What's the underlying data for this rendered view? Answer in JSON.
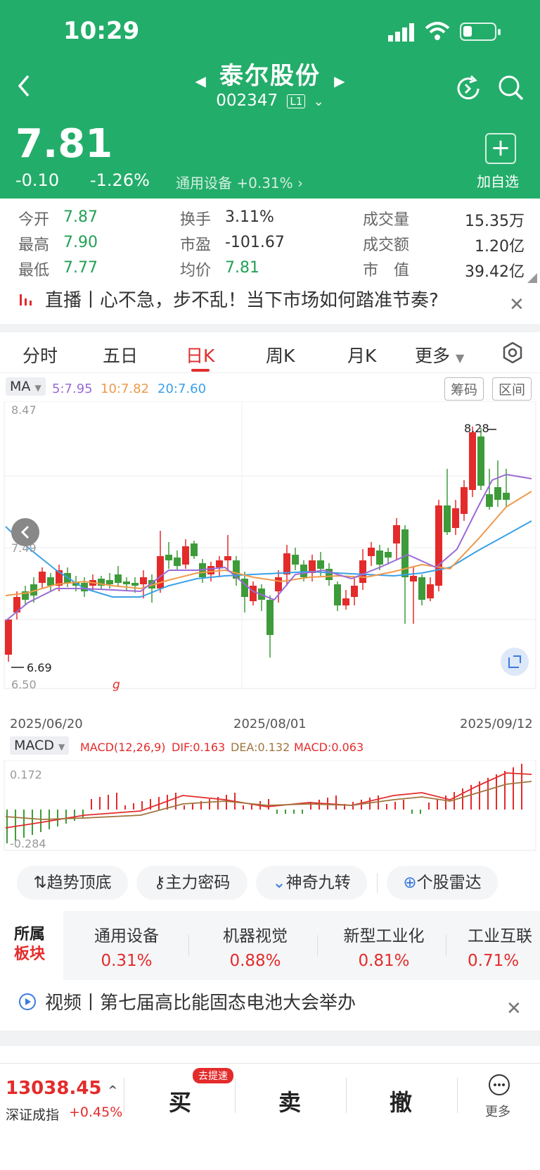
{
  "status_bar": {
    "time": "10:29"
  },
  "header": {
    "stock_name": "泰尔股份",
    "stock_code": "002347",
    "level_badge": "L1",
    "price": "7.81",
    "change": "-0.10",
    "change_pct": "-1.26%",
    "sector": "通用设备 +0.31%",
    "add_watch_label": "加自选"
  },
  "stats": [
    {
      "label": "今开",
      "value": "7.87"
    },
    {
      "label": "最高",
      "value": "7.90"
    },
    {
      "label": "最低",
      "value": "7.77"
    },
    {
      "label": "换手",
      "value": "3.11%"
    },
    {
      "label": "市盈",
      "value": "-101.67"
    },
    {
      "label": "均价",
      "value": "7.81"
    },
    {
      "label": "成交量",
      "value": "15.35万"
    },
    {
      "label": "成交额",
      "value": "1.20亿"
    },
    {
      "label": "市　值",
      "value": "39.42亿"
    }
  ],
  "news_banner": {
    "text": "直播丨心不急，步不乱！当下市场如何踏准节奏?"
  },
  "tabs": [
    "分时",
    "五日",
    "日K",
    "周K",
    "月K",
    "更多"
  ],
  "ma": {
    "label": "MA",
    "ma5": "5:7.95",
    "ma10": "10:7.82",
    "ma20": "20:7.60",
    "btn_chips": "筹码",
    "btn_range": "区间"
  },
  "chart": {
    "y_max": "8.47",
    "y_mid": "7.49",
    "y_min": "6.50",
    "high_label": "8.28",
    "low_label": "6.69",
    "dates": [
      "2025/06/20",
      "2025/08/01",
      "2025/09/12"
    ]
  },
  "macd": {
    "label": "MACD",
    "params": "MACD(12,26,9)",
    "dif": "DIF:0.163",
    "dea": "DEA:0.132",
    "val": "MACD:0.063",
    "top": "0.172",
    "bottom": "-0.284"
  },
  "tools": [
    "趋势顶底",
    "主力密码",
    "神奇九转",
    "个股雷达"
  ],
  "sectors_title_1": "所属",
  "sectors_title_2": "板块",
  "sectors": [
    {
      "name": "通用设备",
      "pct": "0.31%"
    },
    {
      "name": "机器视觉",
      "pct": "0.88%"
    },
    {
      "name": "新型工业化",
      "pct": "0.81%"
    },
    {
      "name": "工业互联",
      "pct": "0.71%"
    }
  ],
  "video_banner": {
    "text": "视频丨第七届高比能固态电池大会举办"
  },
  "bottom": {
    "index_value": "13038.45",
    "index_name": "深证成指",
    "index_pct": "+0.45%",
    "buy": "买",
    "buy_badge": "去提速",
    "sell": "卖",
    "cancel": "撤",
    "more": "更多"
  },
  "colors": {
    "brand_green": "#23ad6a",
    "up_red": "#e32b2b",
    "down_green": "#22a055"
  }
}
